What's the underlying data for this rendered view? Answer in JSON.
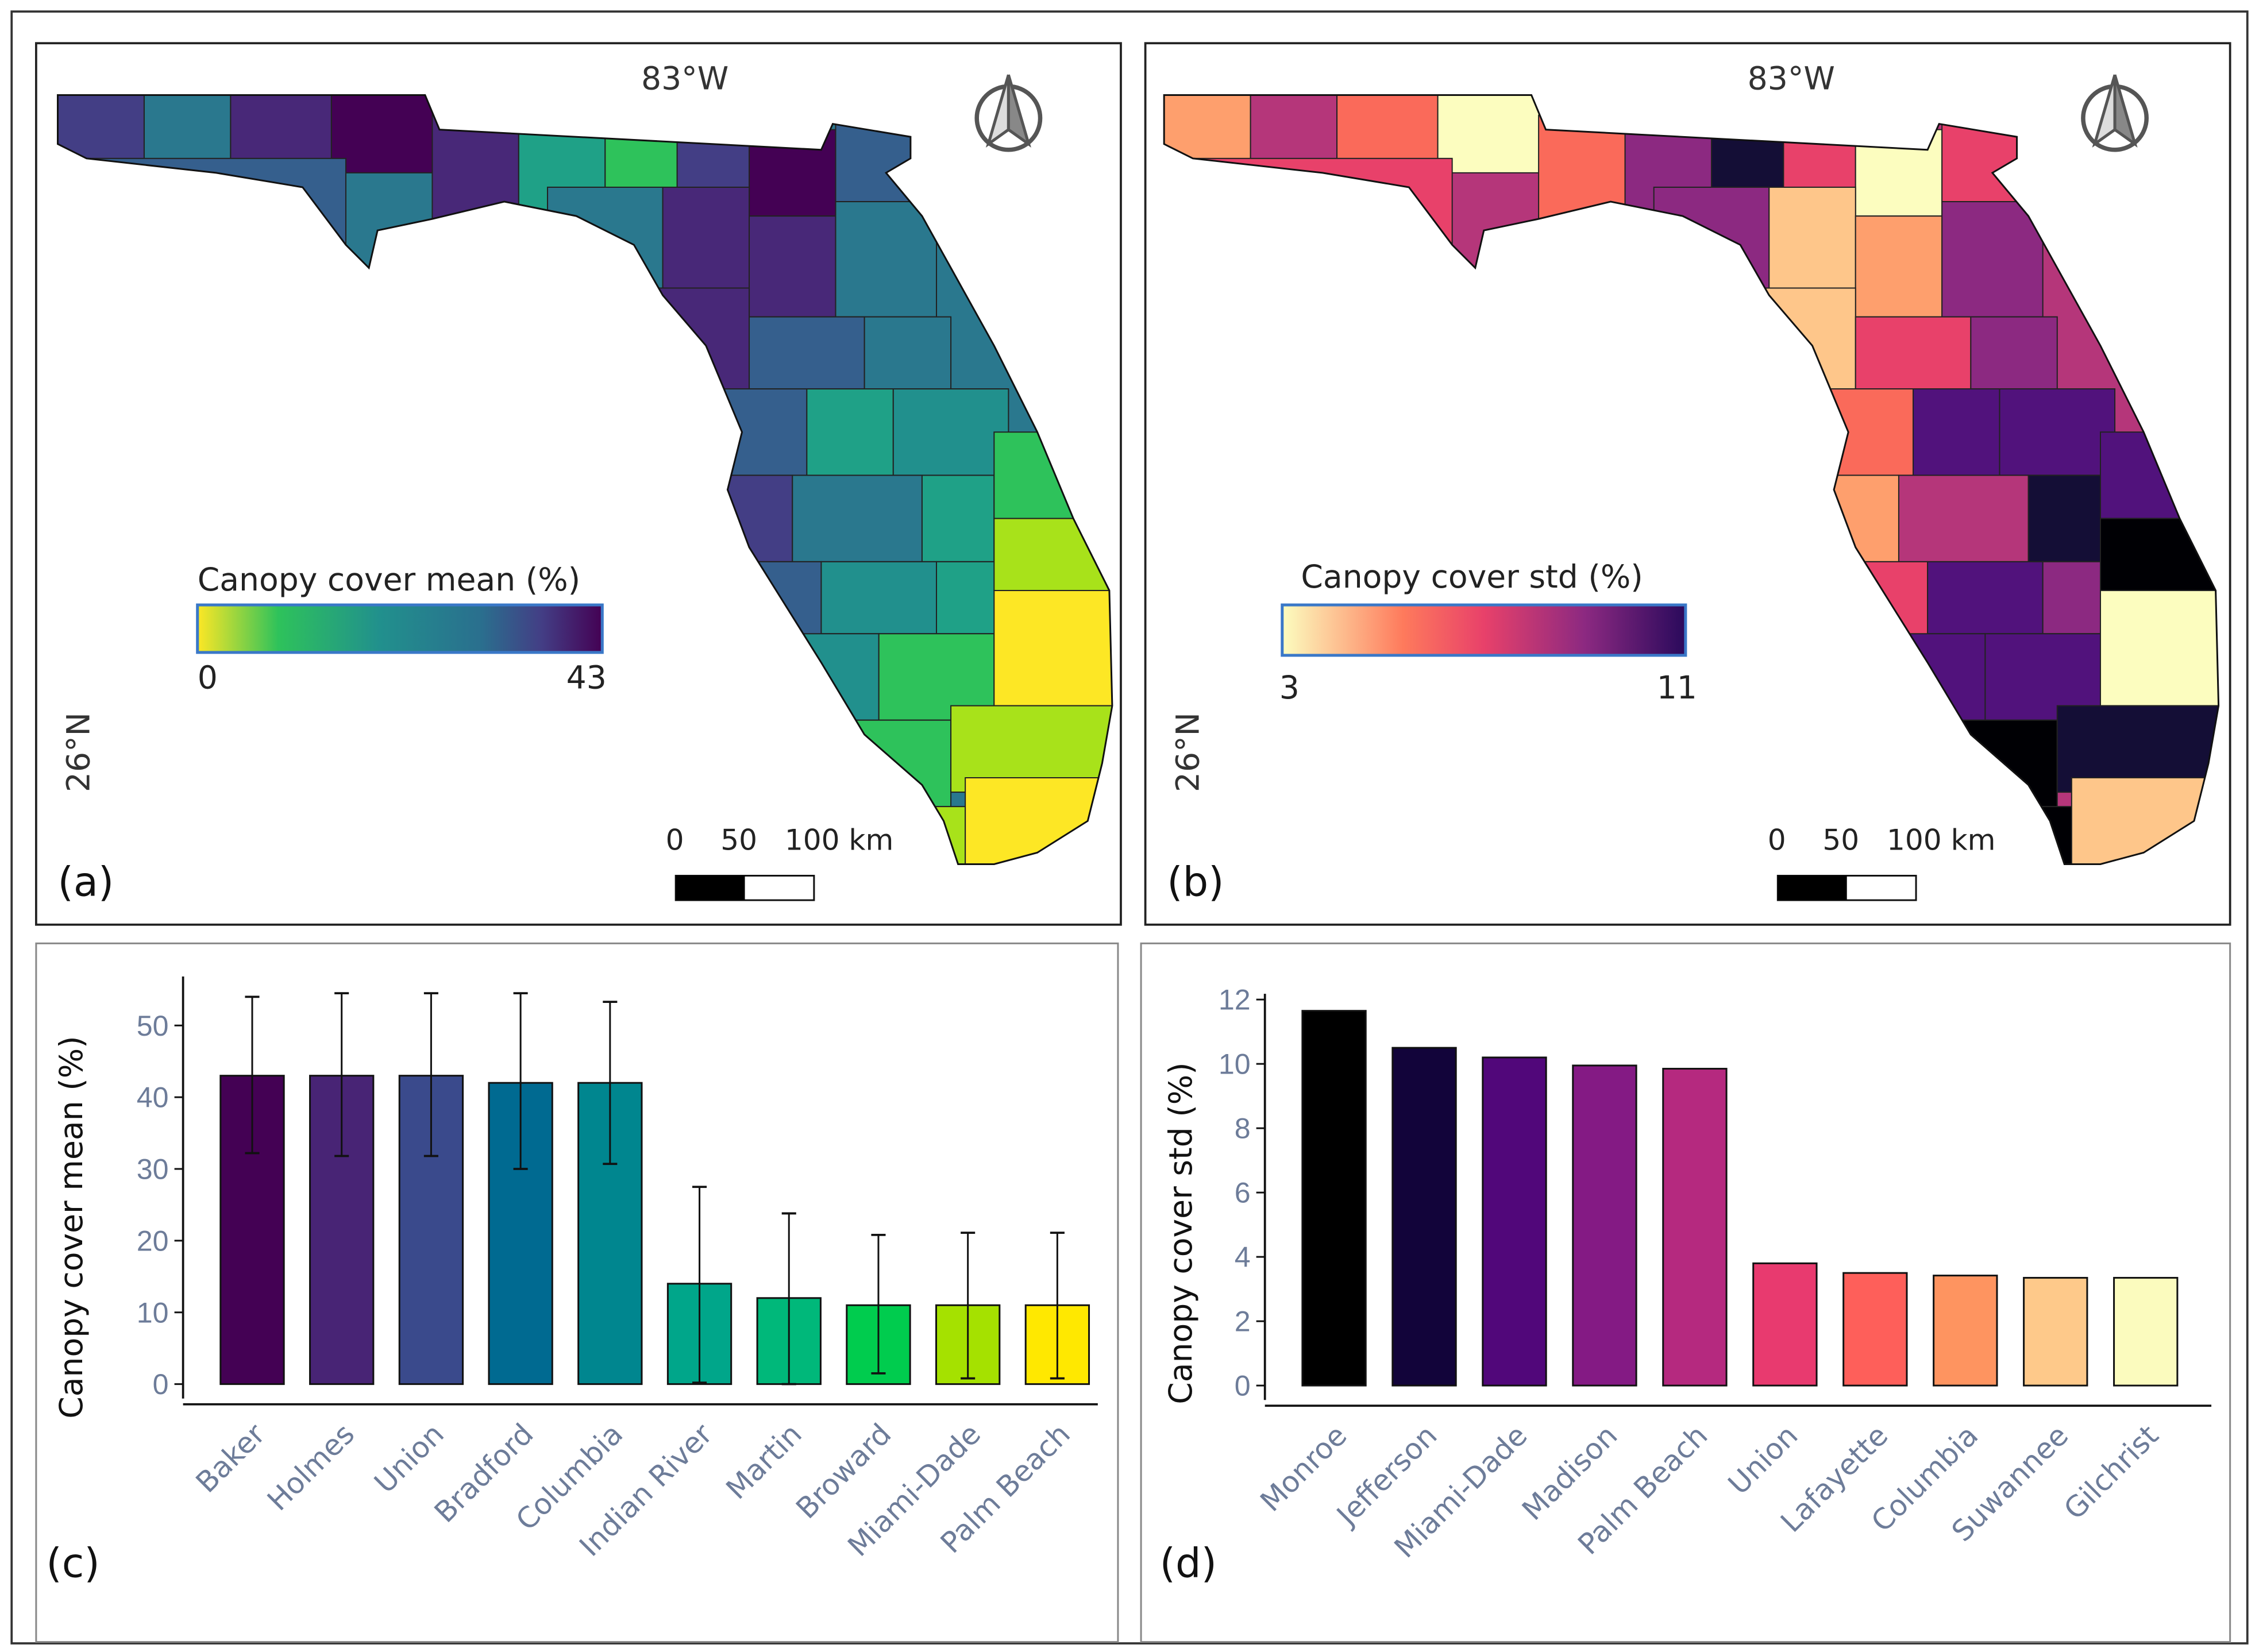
{
  "panels": {
    "a": {
      "label": "(a)",
      "lon_label": "83°W",
      "lat_label": "26°N",
      "legend_title": "Canopy cover mean (%)",
      "legend_min": "0",
      "legend_max": "43",
      "scale_label": "0    50   100 km",
      "colors": [
        "#fde725",
        "#a8e21a",
        "#2ec25b",
        "#1fa187",
        "#21908d",
        "#2a788e",
        "#355f8d",
        "#433e85",
        "#482878",
        "#440154"
      ]
    },
    "b": {
      "label": "(b)",
      "lon_label": "83°W",
      "lat_label": "26°N",
      "legend_title": "Canopy cover std (%)",
      "legend_min": "3",
      "legend_max": "11",
      "scale_label": "0    50   100 km",
      "colors": [
        "#fcfdbf",
        "#fec68a",
        "#fe9f6d",
        "#fa6a5a",
        "#e8416a",
        "#b5367a",
        "#8c2981",
        "#51127c",
        "#140e36",
        "#000004"
      ]
    },
    "c": {
      "label": "(c)"
    },
    "d": {
      "label": "(d)"
    }
  },
  "chart_data": [
    {
      "type": "bar",
      "title": "",
      "ylabel": "Canopy cover mean (%)",
      "xlabel": "",
      "ylim": [
        0,
        57
      ],
      "yticks": [
        "0",
        "10",
        "20",
        "30",
        "40",
        "50"
      ],
      "categories": [
        "Baker",
        "Holmes",
        "Union",
        "Bradford",
        "Columbia",
        "Indian River",
        "Martin",
        "Broward",
        "Miami-Dade",
        "Palm Beach"
      ],
      "values": [
        43,
        43,
        43,
        42,
        42,
        14,
        12,
        11,
        11,
        11
      ],
      "error_upper": [
        54,
        54.5,
        54.5,
        54.5,
        53.3,
        27.5,
        23.8,
        20.8,
        21.1,
        21.1
      ],
      "error_lower": [
        32.2,
        31.8,
        31.8,
        30,
        30.7,
        0.2,
        0,
        1.5,
        0.8,
        0.8
      ],
      "colors": [
        "#440154",
        "#482475",
        "#3a4a8c",
        "#006a91",
        "#00868f",
        "#00a68a",
        "#00b87a",
        "#00cc4e",
        "#a5e100",
        "#ffe800"
      ]
    },
    {
      "type": "bar",
      "title": "",
      "ylabel": "Canopy cover std  (%)",
      "xlabel": "",
      "ylim": [
        0,
        12.3
      ],
      "yticks": [
        "0",
        "2",
        "4",
        "6",
        "8",
        "10",
        "12"
      ],
      "categories": [
        "Monroe",
        "Jefferson",
        "Miami-Dade",
        "Madison",
        "Palm Beach",
        "Union",
        "Lafayette",
        "Columbia",
        "Suwannee",
        "Gilchrist"
      ],
      "values": [
        11.65,
        10.5,
        10.2,
        9.95,
        9.85,
        3.8,
        3.5,
        3.42,
        3.35,
        3.35
      ],
      "colors": [
        "#000000",
        "#12043a",
        "#51077a",
        "#841a84",
        "#b5297f",
        "#e83a6f",
        "#fe5f5a",
        "#fe9460",
        "#fec98a",
        "#fbfbbe"
      ]
    }
  ]
}
